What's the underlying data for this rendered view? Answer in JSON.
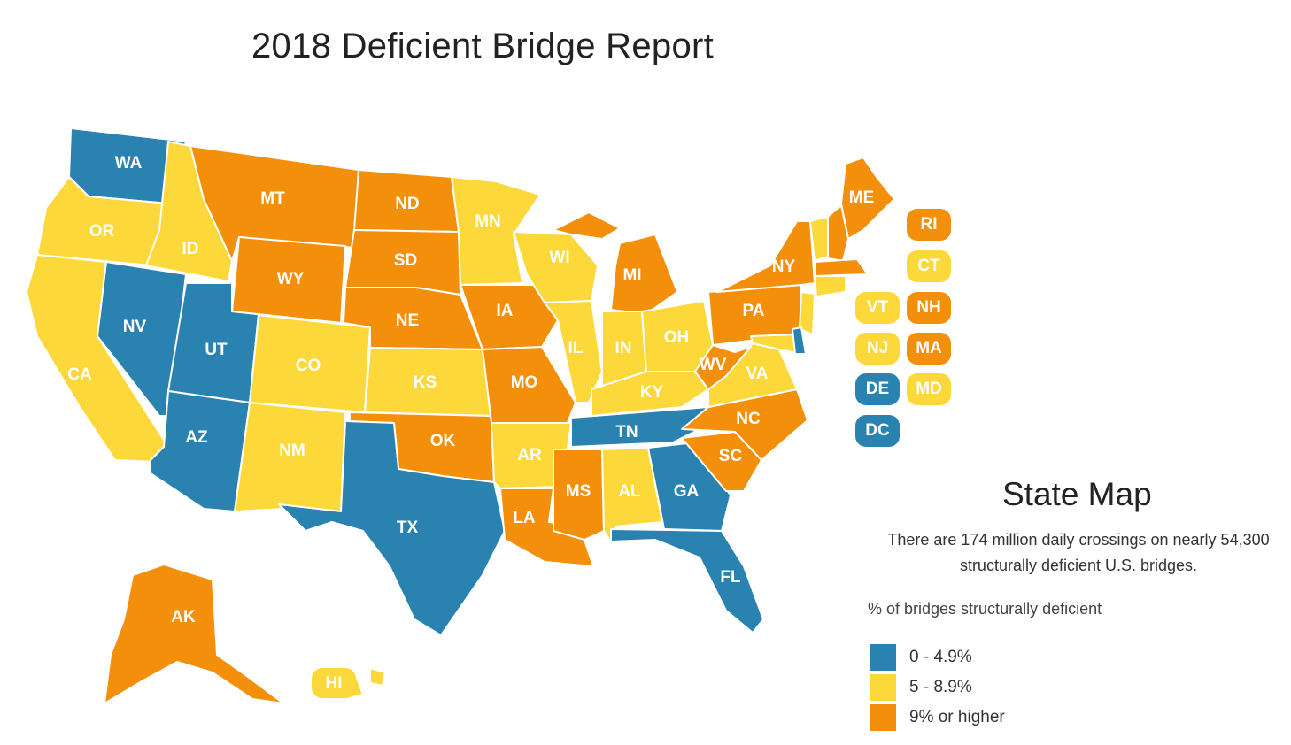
{
  "title": "2018 Deficient Bridge Report",
  "colors": {
    "low": "#2a82b0",
    "mid": "#fdd83a",
    "high": "#f48f0b"
  },
  "map": {
    "states": [
      {
        "abbr": "WA",
        "category": "low"
      },
      {
        "abbr": "OR",
        "category": "mid"
      },
      {
        "abbr": "CA",
        "category": "mid"
      },
      {
        "abbr": "ID",
        "category": "mid"
      },
      {
        "abbr": "NV",
        "category": "low"
      },
      {
        "abbr": "UT",
        "category": "low"
      },
      {
        "abbr": "AZ",
        "category": "low"
      },
      {
        "abbr": "MT",
        "category": "high"
      },
      {
        "abbr": "WY",
        "category": "high"
      },
      {
        "abbr": "CO",
        "category": "mid"
      },
      {
        "abbr": "NM",
        "category": "mid"
      },
      {
        "abbr": "ND",
        "category": "high"
      },
      {
        "abbr": "SD",
        "category": "high"
      },
      {
        "abbr": "NE",
        "category": "high"
      },
      {
        "abbr": "KS",
        "category": "mid"
      },
      {
        "abbr": "OK",
        "category": "high"
      },
      {
        "abbr": "TX",
        "category": "low"
      },
      {
        "abbr": "MN",
        "category": "mid"
      },
      {
        "abbr": "IA",
        "category": "high"
      },
      {
        "abbr": "MO",
        "category": "high"
      },
      {
        "abbr": "AR",
        "category": "mid"
      },
      {
        "abbr": "LA",
        "category": "high"
      },
      {
        "abbr": "WI",
        "category": "mid"
      },
      {
        "abbr": "IL",
        "category": "mid"
      },
      {
        "abbr": "MI",
        "category": "high"
      },
      {
        "abbr": "IN",
        "category": "mid"
      },
      {
        "abbr": "OH",
        "category": "mid"
      },
      {
        "abbr": "KY",
        "category": "mid"
      },
      {
        "abbr": "TN",
        "category": "low"
      },
      {
        "abbr": "MS",
        "category": "high"
      },
      {
        "abbr": "AL",
        "category": "mid"
      },
      {
        "abbr": "GA",
        "category": "low"
      },
      {
        "abbr": "FL",
        "category": "low"
      },
      {
        "abbr": "SC",
        "category": "high"
      },
      {
        "abbr": "NC",
        "category": "high"
      },
      {
        "abbr": "VA",
        "category": "mid"
      },
      {
        "abbr": "WV",
        "category": "high"
      },
      {
        "abbr": "PA",
        "category": "high"
      },
      {
        "abbr": "NY",
        "category": "high"
      },
      {
        "abbr": "ME",
        "category": "high"
      },
      {
        "abbr": "AK",
        "category": "high"
      },
      {
        "abbr": "HI",
        "category": "mid"
      }
    ],
    "small_states": [
      {
        "abbr": "RI",
        "category": "high"
      },
      {
        "abbr": "CT",
        "category": "mid"
      },
      {
        "abbr": "VT",
        "category": "mid"
      },
      {
        "abbr": "NH",
        "category": "high"
      },
      {
        "abbr": "NJ",
        "category": "mid"
      },
      {
        "abbr": "MA",
        "category": "high"
      },
      {
        "abbr": "DE",
        "category": "low"
      },
      {
        "abbr": "MD",
        "category": "mid"
      },
      {
        "abbr": "DC",
        "category": "low"
      }
    ]
  },
  "panel": {
    "title": "State Map",
    "description": "There are 174 million daily crossings on nearly 54,300 structurally deficient U.S. bridges."
  },
  "legend": {
    "title": "% of bridges structurally deficient",
    "items": [
      {
        "label": "0 - 4.9%",
        "category": "low"
      },
      {
        "label": "5 - 8.9%",
        "category": "mid"
      },
      {
        "label": "9% or higher",
        "category": "high"
      }
    ]
  }
}
